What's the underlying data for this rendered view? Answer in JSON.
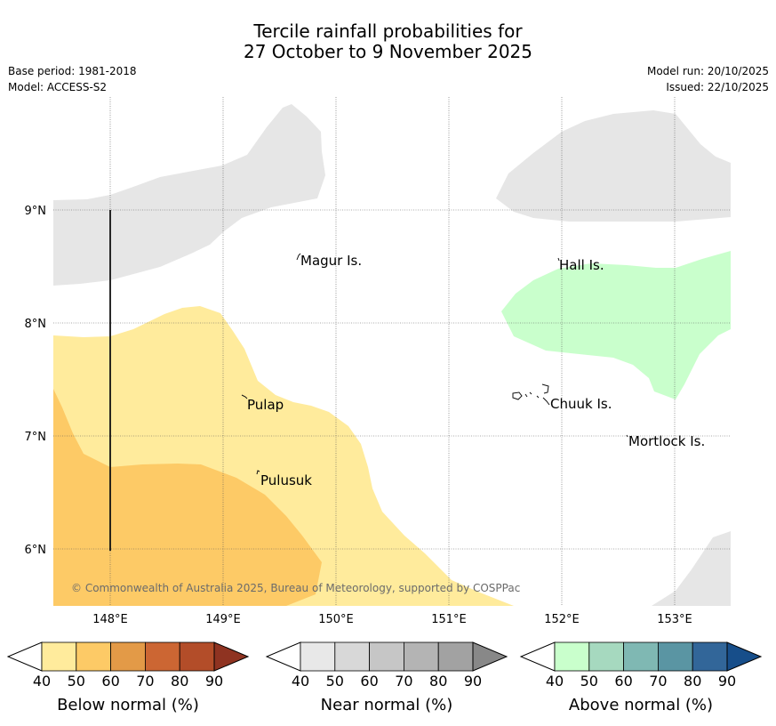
{
  "title": {
    "line1": "Tercile rainfall probabilities for",
    "line2": "27 October to 9 November 2025"
  },
  "meta": {
    "base_period": "Base period: 1981-2018",
    "model": "Model: ACCESS-S2",
    "model_run": "Model run: 20/10/2025",
    "issued": "Issued: 22/10/2025"
  },
  "map": {
    "lat_labels": [
      "9°N",
      "8°N",
      "7°N",
      "6°N"
    ],
    "lon_labels": [
      "148°E",
      "149°E",
      "150°E",
      "151°E",
      "152°E",
      "153°E"
    ],
    "places": {
      "magur": "Magur Is.",
      "hall": "Hall Is.",
      "pulap": "Pulap",
      "chuuk": "Chuuk Is.",
      "mortlock": "Mortlock Is.",
      "pulusuk": "Pulusuk"
    },
    "copyright": "© Commonwealth of Australia 2025, Bureau of Meteorology, supported by COSPPac"
  },
  "colorbars": {
    "below": {
      "title": "Below normal (%)",
      "ticks": [
        "40",
        "50",
        "60",
        "70",
        "80",
        "90"
      ],
      "colors": [
        "#ffeb9c",
        "#fdca66",
        "#e39a47",
        "#cc6633",
        "#b34d29",
        "#8f3321"
      ]
    },
    "near": {
      "title": "Near normal (%)",
      "ticks": [
        "40",
        "50",
        "60",
        "70",
        "80",
        "90"
      ],
      "colors": [
        "#e8e8e8",
        "#d8d8d8",
        "#c6c6c6",
        "#b4b4b4",
        "#a2a2a2",
        "#888888"
      ]
    },
    "above": {
      "title": "Above normal (%)",
      "ticks": [
        "40",
        "50",
        "60",
        "70",
        "80",
        "90"
      ],
      "colors": [
        "#c9ffcc",
        "#a6d9bf",
        "#7fb8b3",
        "#5a95a3",
        "#326699",
        "#174e8a"
      ]
    }
  }
}
